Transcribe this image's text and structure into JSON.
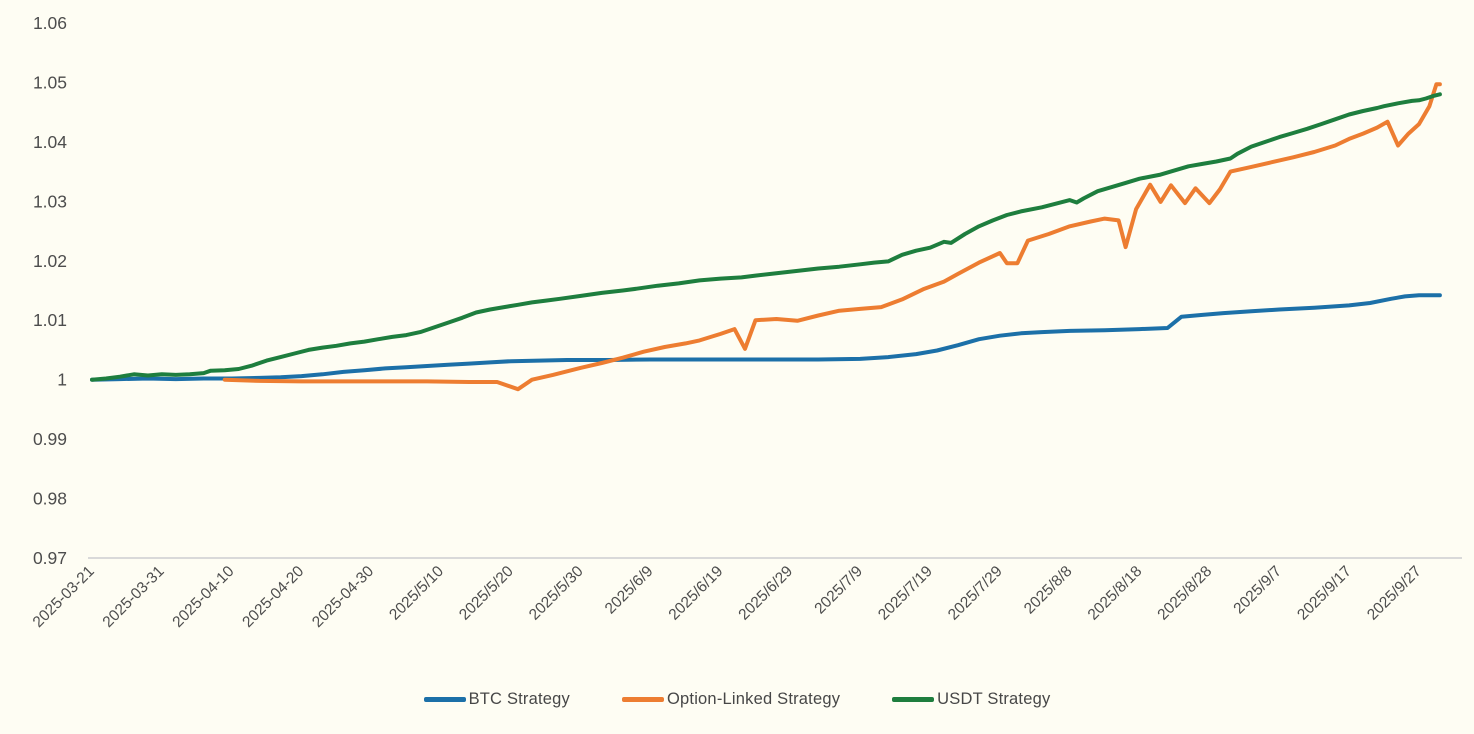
{
  "chart_data": {
    "type": "line",
    "title": "",
    "xlabel": "",
    "ylabel": "",
    "grid": "baseline-only",
    "legend_position": "bottom-center",
    "background_color": "#fefdf3",
    "axis_line_color": "#d9d9d9",
    "axis_text_color": "#4d4d4d",
    "x_start_date": "2025-03-21",
    "x_domain_days": [
      0,
      193
    ],
    "y_axis": {
      "min": 0.97,
      "max": 1.06,
      "ticks": [
        1.06,
        1.05,
        1.04,
        1.03,
        1.02,
        1.01,
        1,
        0.99,
        0.98,
        0.97
      ],
      "tick_labels": [
        "1.06",
        "1.05",
        "1.04",
        "1.03",
        "1.02",
        "1.01",
        "1",
        "0.99",
        "0.98",
        "0.97"
      ]
    },
    "x_axis": {
      "tick_days": [
        0,
        10,
        20,
        30,
        40,
        50,
        60,
        70,
        80,
        90,
        100,
        110,
        120,
        130,
        140,
        150,
        160,
        170,
        180,
        190
      ],
      "tick_labels": [
        "2025-03-21",
        "2025-03-31",
        "2025-04-10",
        "2025-04-20",
        "2025-04-30",
        "2025/5/10",
        "2025/5/20",
        "2025/5/30",
        "2025/6/9",
        "2025/6/19",
        "2025/6/29",
        "2025/7/9",
        "2025/7/19",
        "2025/7/29",
        "2025/8/8",
        "2025/8/18",
        "2025/8/28",
        "2025/9/7",
        "2025/9/17",
        "2025/9/27"
      ]
    },
    "series": [
      {
        "name": "BTC Strategy",
        "color": "#1c70a8",
        "points": [
          [
            0,
            1.0
          ],
          [
            4,
            1.0001
          ],
          [
            8,
            1.0002
          ],
          [
            12,
            1.0001
          ],
          [
            16,
            1.0002
          ],
          [
            20,
            1.0002
          ],
          [
            24,
            1.0003
          ],
          [
            27,
            1.0004
          ],
          [
            30,
            1.0006
          ],
          [
            33,
            1.0009
          ],
          [
            36,
            1.0013
          ],
          [
            39,
            1.0016
          ],
          [
            42,
            1.0019
          ],
          [
            45,
            1.0021
          ],
          [
            48,
            1.0023
          ],
          [
            51,
            1.0025
          ],
          [
            54,
            1.0027
          ],
          [
            57,
            1.0029
          ],
          [
            60,
            1.0031
          ],
          [
            64,
            1.0032
          ],
          [
            68,
            1.0033
          ],
          [
            74,
            1.0033
          ],
          [
            80,
            1.0034
          ],
          [
            88,
            1.0034
          ],
          [
            96,
            1.0034
          ],
          [
            104,
            1.0034
          ],
          [
            110,
            1.0035
          ],
          [
            114,
            1.0038
          ],
          [
            118,
            1.0043
          ],
          [
            121,
            1.0049
          ],
          [
            124,
            1.0058
          ],
          [
            127,
            1.0068
          ],
          [
            130,
            1.0074
          ],
          [
            133,
            1.0078
          ],
          [
            136,
            1.008
          ],
          [
            140,
            1.0082
          ],
          [
            145,
            1.0083
          ],
          [
            150,
            1.0085
          ],
          [
            154,
            1.0087
          ],
          [
            156,
            1.0106
          ],
          [
            159,
            1.0109
          ],
          [
            162,
            1.0112
          ],
          [
            166,
            1.0115
          ],
          [
            170,
            1.0118
          ],
          [
            175,
            1.0121
          ],
          [
            180,
            1.0125
          ],
          [
            183,
            1.0129
          ],
          [
            186,
            1.0136
          ],
          [
            188,
            1.014
          ],
          [
            190,
            1.0142
          ],
          [
            193,
            1.0142
          ]
        ]
      },
      {
        "name": "Option-Linked Strategy",
        "color": "#ed7d31",
        "points": [
          [
            19,
            1.0
          ],
          [
            24,
            0.9998
          ],
          [
            30,
            0.9997
          ],
          [
            36,
            0.9997
          ],
          [
            42,
            0.9997
          ],
          [
            48,
            0.9997
          ],
          [
            54,
            0.9996
          ],
          [
            58,
            0.9996
          ],
          [
            61,
            0.9984
          ],
          [
            63,
            1.0
          ],
          [
            66,
            1.0008
          ],
          [
            70,
            1.002
          ],
          [
            73,
            1.0028
          ],
          [
            76,
            1.0037
          ],
          [
            79,
            1.0047
          ],
          [
            82,
            1.0055
          ],
          [
            85,
            1.0061
          ],
          [
            87,
            1.0066
          ],
          [
            90,
            1.0077
          ],
          [
            92,
            1.0085
          ],
          [
            93.5,
            1.0052
          ],
          [
            95,
            1.01
          ],
          [
            98,
            1.0102
          ],
          [
            101,
            1.0099
          ],
          [
            104,
            1.0108
          ],
          [
            107,
            1.0116
          ],
          [
            110,
            1.0119
          ],
          [
            113,
            1.0122
          ],
          [
            116,
            1.0135
          ],
          [
            119,
            1.0152
          ],
          [
            122,
            1.0165
          ],
          [
            124,
            1.0178
          ],
          [
            127,
            1.0197
          ],
          [
            130,
            1.0213
          ],
          [
            131,
            1.0196
          ],
          [
            132.5,
            1.0196
          ],
          [
            134,
            1.0234
          ],
          [
            137,
            1.0245
          ],
          [
            140,
            1.0258
          ],
          [
            143,
            1.0266
          ],
          [
            145,
            1.0271
          ],
          [
            147,
            1.0268
          ],
          [
            148,
            1.0223
          ],
          [
            149.5,
            1.0287
          ],
          [
            151.5,
            1.0328
          ],
          [
            153,
            1.0299
          ],
          [
            154.5,
            1.0327
          ],
          [
            156.5,
            1.0297
          ],
          [
            158,
            1.0322
          ],
          [
            160,
            1.0297
          ],
          [
            161.5,
            1.032
          ],
          [
            163,
            1.035
          ],
          [
            166,
            1.0358
          ],
          [
            169,
            1.0366
          ],
          [
            172,
            1.0374
          ],
          [
            175,
            1.0383
          ],
          [
            178,
            1.0394
          ],
          [
            180,
            1.0405
          ],
          [
            182,
            1.0414
          ],
          [
            184,
            1.0424
          ],
          [
            185.5,
            1.0434
          ],
          [
            187,
            1.0394
          ],
          [
            188.5,
            1.0414
          ],
          [
            190,
            1.043
          ],
          [
            191.5,
            1.046
          ],
          [
            192.5,
            1.0497
          ],
          [
            193,
            1.0497
          ]
        ]
      },
      {
        "name": "USDT Strategy",
        "color": "#1e7e3e",
        "points": [
          [
            0,
            1.0
          ],
          [
            2,
            1.0002
          ],
          [
            4,
            1.0005
          ],
          [
            6,
            1.0009
          ],
          [
            8,
            1.0007
          ],
          [
            10,
            1.0009
          ],
          [
            12,
            1.0008
          ],
          [
            14,
            1.0009
          ],
          [
            16,
            1.0011
          ],
          [
            17,
            1.0015
          ],
          [
            19,
            1.0016
          ],
          [
            21,
            1.0018
          ],
          [
            23,
            1.0024
          ],
          [
            25,
            1.0032
          ],
          [
            27,
            1.0038
          ],
          [
            29,
            1.0044
          ],
          [
            31,
            1.005
          ],
          [
            33,
            1.0054
          ],
          [
            35,
            1.0057
          ],
          [
            37,
            1.0061
          ],
          [
            39,
            1.0064
          ],
          [
            41,
            1.0068
          ],
          [
            43,
            1.0072
          ],
          [
            45,
            1.0075
          ],
          [
            47,
            1.008
          ],
          [
            49,
            1.0088
          ],
          [
            51,
            1.0096
          ],
          [
            53,
            1.0104
          ],
          [
            55,
            1.0113
          ],
          [
            57,
            1.0118
          ],
          [
            59,
            1.0122
          ],
          [
            61,
            1.0126
          ],
          [
            63,
            1.013
          ],
          [
            65,
            1.0133
          ],
          [
            67,
            1.0136
          ],
          [
            70,
            1.0141
          ],
          [
            73,
            1.0146
          ],
          [
            76,
            1.015
          ],
          [
            78,
            1.0153
          ],
          [
            81,
            1.0158
          ],
          [
            84,
            1.0162
          ],
          [
            87,
            1.0167
          ],
          [
            90,
            1.017
          ],
          [
            93,
            1.0172
          ],
          [
            95,
            1.0175
          ],
          [
            98,
            1.0179
          ],
          [
            101,
            1.0183
          ],
          [
            104,
            1.0187
          ],
          [
            107,
            1.019
          ],
          [
            110,
            1.0194
          ],
          [
            112,
            1.0197
          ],
          [
            114,
            1.0199
          ],
          [
            116,
            1.021
          ],
          [
            118,
            1.0217
          ],
          [
            120,
            1.0222
          ],
          [
            122,
            1.0232
          ],
          [
            123,
            1.023
          ],
          [
            125,
            1.0245
          ],
          [
            127,
            1.0258
          ],
          [
            129,
            1.0268
          ],
          [
            131,
            1.0277
          ],
          [
            133,
            1.0283
          ],
          [
            136,
            1.029
          ],
          [
            138,
            1.0296
          ],
          [
            140,
            1.0302
          ],
          [
            141,
            1.0298
          ],
          [
            142,
            1.0305
          ],
          [
            144,
            1.0317
          ],
          [
            146,
            1.0324
          ],
          [
            148,
            1.0331
          ],
          [
            150,
            1.0338
          ],
          [
            153,
            1.0345
          ],
          [
            155,
            1.0352
          ],
          [
            157,
            1.0359
          ],
          [
            159,
            1.0363
          ],
          [
            161,
            1.0367
          ],
          [
            163,
            1.0372
          ],
          [
            164,
            1.038
          ],
          [
            166,
            1.0392
          ],
          [
            168,
            1.04
          ],
          [
            170,
            1.0408
          ],
          [
            172,
            1.0415
          ],
          [
            174,
            1.0422
          ],
          [
            176,
            1.043
          ],
          [
            178,
            1.0438
          ],
          [
            180,
            1.0446
          ],
          [
            182,
            1.0452
          ],
          [
            184,
            1.0457
          ],
          [
            185,
            1.046
          ],
          [
            187,
            1.0465
          ],
          [
            189,
            1.0469
          ],
          [
            190,
            1.047
          ],
          [
            191,
            1.0473
          ],
          [
            192,
            1.0477
          ],
          [
            193,
            1.048
          ]
        ]
      }
    ]
  },
  "legend": {
    "items": [
      {
        "label": "BTC Strategy",
        "color": "#1c70a8"
      },
      {
        "label": "Option-Linked Strategy",
        "color": "#ed7d31"
      },
      {
        "label": "USDT Strategy",
        "color": "#1e7e3e"
      }
    ]
  }
}
